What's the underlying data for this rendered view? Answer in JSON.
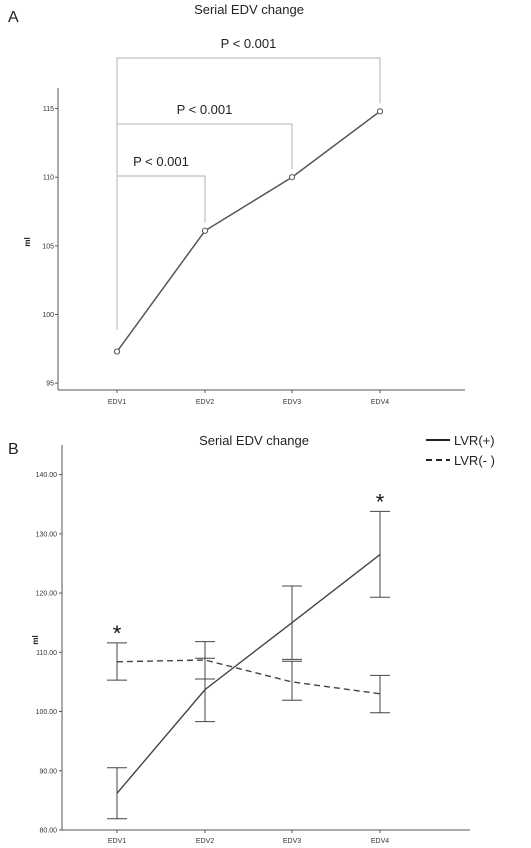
{
  "chart_data": [
    {
      "panel": "A",
      "type": "line",
      "title": "Serial EDV change",
      "ylabel": "ml",
      "categories": [
        "EDV1",
        "EDV2",
        "EDV3",
        "EDV4"
      ],
      "values": [
        97.3,
        106.1,
        110.0,
        114.8
      ],
      "ylim": [
        94.5,
        116.5
      ],
      "yticks": [
        95,
        100,
        105,
        110,
        115
      ],
      "markers": true,
      "grid": false,
      "annotations": [
        {
          "text": "P < 0.001",
          "from": "EDV1",
          "to": "EDV2"
        },
        {
          "text": "P < 0.001",
          "from": "EDV1",
          "to": "EDV3"
        },
        {
          "text": "P < 0.001",
          "from": "EDV1",
          "to": "EDV4"
        }
      ]
    },
    {
      "panel": "B",
      "type": "line",
      "title": "Serial EDV change",
      "ylabel": "ml",
      "categories": [
        "EDV1",
        "EDV2",
        "EDV3",
        "EDV4"
      ],
      "ylim": [
        80,
        145
      ],
      "yticks": [
        "80.00",
        "90.00",
        "100.00",
        "110.00",
        "120.00",
        "130.00",
        "140.00"
      ],
      "grid": false,
      "legend_position": "top-right",
      "series": [
        {
          "name": "LVR(+)",
          "style": "solid",
          "values": [
            86.2,
            103.7,
            115.0,
            126.5
          ],
          "lower": [
            81.9,
            98.3,
            108.8,
            119.3
          ],
          "upper": [
            90.5,
            109.0,
            121.2,
            133.8
          ]
        },
        {
          "name": "LVR(- )",
          "style": "dashed",
          "values": [
            108.4,
            108.7,
            105.0,
            103.0
          ],
          "lower": [
            105.3,
            105.5,
            101.9,
            99.8
          ],
          "upper": [
            111.6,
            111.8,
            108.5,
            106.1
          ]
        }
      ],
      "significance": [
        {
          "category": "EDV1",
          "text": "*"
        },
        {
          "category": "EDV4",
          "text": "*"
        }
      ]
    }
  ]
}
